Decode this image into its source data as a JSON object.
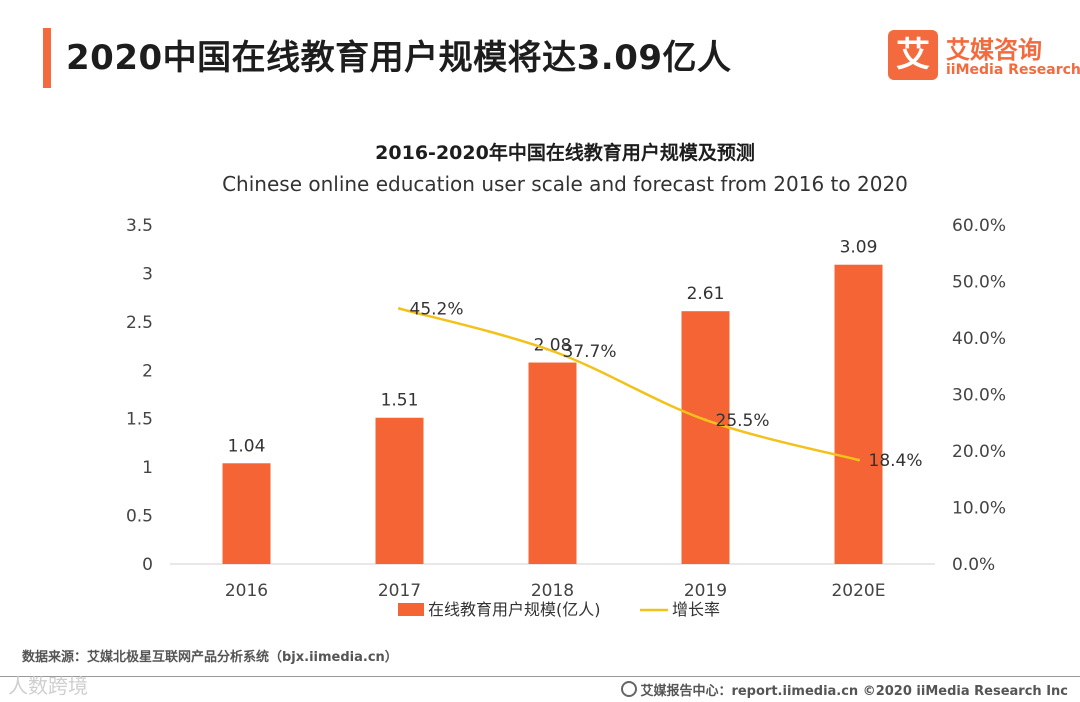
{
  "page_title": "2020中国在线教育用户规模将达3.09亿人",
  "logo": {
    "mark": "艾",
    "name_cn": "艾媒咨询",
    "name_en": "iiMedia Research"
  },
  "chart_data": {
    "type": "bar",
    "title": "2016-2020年中国在线教育用户规模及预测",
    "subtitle": "Chinese online education user scale and forecast from 2016 to 2020",
    "categories": [
      "2016",
      "2017",
      "2018",
      "2019",
      "2020E"
    ],
    "series": [
      {
        "name": "在线教育用户规模(亿人)",
        "type": "bar",
        "axis": "left",
        "color": "#f56434",
        "values": [
          1.04,
          1.51,
          2.08,
          2.61,
          3.09
        ],
        "labels": [
          "1.04",
          "1.51",
          "2.08",
          "2.61",
          "3.09"
        ]
      },
      {
        "name": "增长率",
        "type": "line",
        "axis": "right",
        "color": "#f2c21b",
        "values": [
          null,
          45.2,
          37.7,
          25.5,
          18.4
        ],
        "labels": [
          "",
          "45.2%",
          "37.7%",
          "25.5%",
          "18.4%"
        ]
      }
    ],
    "y_left": {
      "min": 0,
      "max": 3.5,
      "ticks": [
        "0",
        "0.5",
        "1",
        "1.5",
        "2",
        "2.5",
        "3",
        "3.5"
      ]
    },
    "y_right": {
      "min": 0,
      "max": 60,
      "ticks": [
        "0.0%",
        "10.0%",
        "20.0%",
        "30.0%",
        "40.0%",
        "50.0%",
        "60.0%"
      ]
    },
    "grid": false,
    "legend_position": "bottom"
  },
  "source": "数据来源：艾媒北极星互联网产品分析系统（bjx.iimedia.cn）",
  "footer": "艾媒报告中心：report.iimedia.cn ©2020 iiMedia Research Inc",
  "watermark": "人数跨境"
}
